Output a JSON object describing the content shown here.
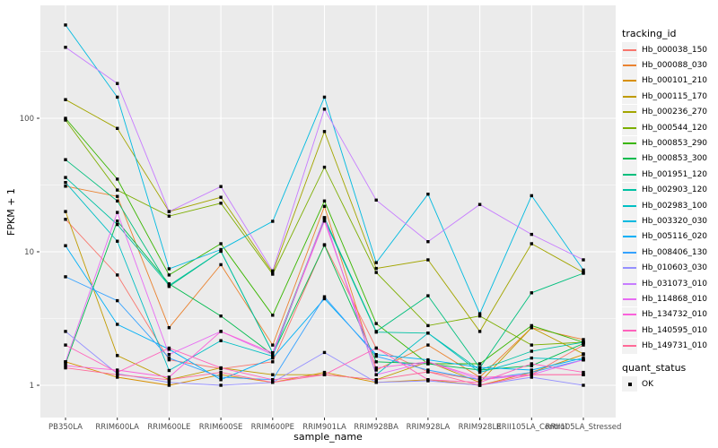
{
  "chart_data": {
    "type": "line",
    "title": "",
    "xlabel": "sample_name",
    "ylabel": "FPKM + 1",
    "y_scale": "log10",
    "y_ticks": [
      1,
      10,
      100
    ],
    "y_minor_ticks": [
      3.162,
      31.62,
      316.2
    ],
    "ylim": [
      0.57,
      700
    ],
    "grid": true,
    "legend_position": "right",
    "panel_bg": "#EBEBEB",
    "grid_color": "#FFFFFF",
    "tick_label_color": "#4D4D4D",
    "tick_mark_color": "#333333",
    "point_color": "#000000",
    "legend": {
      "tracking_title": "tracking_id",
      "quant_title": "quant_status",
      "quant_value": "OK"
    },
    "categories": [
      "PB350LA",
      "RRIM600LA",
      "RRIM600LE",
      "RRIM600SE",
      "RRIM600PE",
      "RRIM901LA",
      "RRIM928BA",
      "RRIM928LA",
      "RRIM928LE",
      "RRII105LA_Control",
      "RRII105LA_Stressed"
    ],
    "series": [
      {
        "name": "Hb_000038_150",
        "color": "#F8766D",
        "values": [
          17.5,
          6.7,
          1.55,
          1.33,
          1.5,
          11.3,
          1.9,
          1.26,
          1.1,
          1.2,
          2.0
        ]
      },
      {
        "name": "Hb_000088_030",
        "color": "#EA8331",
        "values": [
          31,
          26,
          2.7,
          8.0,
          2.0,
          21.9,
          1.3,
          2.0,
          1.15,
          2.7,
          2.2
        ]
      },
      {
        "name": "Hb_000101_210",
        "color": "#D89000",
        "values": [
          1.5,
          1.15,
          1.0,
          1.2,
          1.05,
          1.25,
          1.05,
          1.1,
          1.0,
          1.25,
          1.7
        ]
      },
      {
        "name": "Hb_000115_170",
        "color": "#C09B00",
        "values": [
          20,
          1.67,
          1.1,
          1.35,
          1.2,
          1.2,
          1.1,
          1.5,
          1.05,
          2.7,
          1.72
        ]
      },
      {
        "name": "Hb_000236_270",
        "color": "#A3A500",
        "values": [
          138,
          84,
          20,
          25.6,
          7.0,
          79.5,
          7.5,
          8.7,
          2.53,
          11.5,
          7.0
        ]
      },
      {
        "name": "Hb_000544_120",
        "color": "#7CAE00",
        "values": [
          97,
          29,
          18.5,
          23.1,
          6.8,
          43,
          7.0,
          2.8,
          3.3,
          2.0,
          2.1
        ]
      },
      {
        "name": "Hb_000853_290",
        "color": "#39B600",
        "values": [
          100,
          35,
          6.7,
          11.5,
          3.35,
          24,
          2.9,
          1.45,
          1.45,
          2.8,
          2.1
        ]
      },
      {
        "name": "Hb_000853_300",
        "color": "#00BB4E",
        "values": [
          1.45,
          17,
          5.75,
          3.3,
          1.7,
          11.2,
          1.5,
          1.45,
          1.3,
          1.4,
          2.05
        ]
      },
      {
        "name": "Hb_001951_120",
        "color": "#00BF7D",
        "values": [
          49,
          24,
          5.5,
          10.1,
          1.75,
          18,
          2.53,
          4.68,
          1.35,
          4.93,
          6.9
        ]
      },
      {
        "name": "Hb_002903_120",
        "color": "#00C1A3",
        "values": [
          36,
          16,
          5.6,
          10.1,
          1.75,
          17.5,
          2.5,
          2.46,
          1.3,
          1.8,
          2.1
        ]
      },
      {
        "name": "Hb_002983_100",
        "color": "#00BFC4",
        "values": [
          33,
          12,
          1.29,
          2.16,
          1.65,
          18,
          1.2,
          2.46,
          1.25,
          1.6,
          1.55
        ]
      },
      {
        "name": "Hb_003320_030",
        "color": "#00BAE0",
        "values": [
          500,
          144,
          7.45,
          10.4,
          16.9,
          144,
          8.3,
          27,
          3.44,
          26.3,
          7.3
        ]
      },
      {
        "name": "Hb_005116_020",
        "color": "#00B0F6",
        "values": [
          11.1,
          2.86,
          1.86,
          1.1,
          1.6,
          4.45,
          1.7,
          1.55,
          1.36,
          1.3,
          1.6
        ]
      },
      {
        "name": "Hb_008406_130",
        "color": "#35A2FF",
        "values": [
          6.5,
          4.3,
          1.6,
          1.15,
          1.1,
          4.6,
          1.65,
          1.3,
          1.1,
          1.25,
          1.55
        ]
      },
      {
        "name": "Hb_010603_030",
        "color": "#9590FF",
        "values": [
          2.53,
          1.22,
          1.05,
          1.0,
          1.05,
          1.76,
          1.05,
          1.08,
          1.0,
          1.15,
          1.0
        ]
      },
      {
        "name": "Hb_031073_010",
        "color": "#C77CFF",
        "values": [
          340,
          182,
          20,
          30.8,
          7.2,
          117,
          24.4,
          11.9,
          22.6,
          13.5,
          8.7
        ]
      },
      {
        "name": "Hb_114868_010",
        "color": "#E76BF3",
        "values": [
          1.5,
          19.7,
          1.7,
          2.53,
          1.7,
          18,
          1.2,
          1.5,
          1.1,
          1.2,
          1.55
        ]
      },
      {
        "name": "Hb_134732_010",
        "color": "#FA62DB",
        "values": [
          1.4,
          1.3,
          1.15,
          2.53,
          1.75,
          17,
          1.35,
          1.5,
          1.14,
          1.2,
          1.2
        ]
      },
      {
        "name": "Hb_140595_010",
        "color": "#FF62BC",
        "values": [
          2.0,
          1.25,
          1.9,
          1.35,
          1.1,
          1.2,
          1.9,
          1.1,
          1.05,
          1.45,
          1.25
        ]
      },
      {
        "name": "Hb_149731_010",
        "color": "#FF6A98",
        "values": [
          1.35,
          1.2,
          1.1,
          1.25,
          1.05,
          1.2,
          1.1,
          1.26,
          1.0,
          1.2,
          1.2
        ]
      }
    ]
  }
}
